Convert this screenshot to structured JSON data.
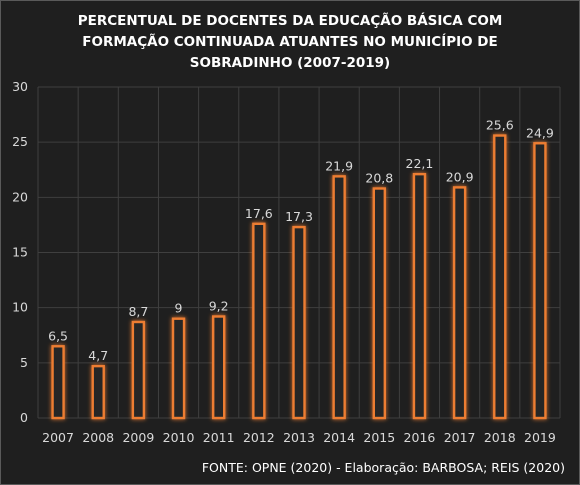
{
  "chart_data": {
    "type": "bar",
    "title_lines": [
      "PERCENTUAL DE DOCENTES DA EDUCAÇÃO BÁSICA COM",
      "FORMAÇÃO CONTINUADA ATUANTES NO MUNICÍPIO DE",
      "SOBRADINHO  (2007-2019)"
    ],
    "categories": [
      "2007",
      "2008",
      "2009",
      "2010",
      "2011",
      "2012",
      "2013",
      "2014",
      "2015",
      "2016",
      "2017",
      "2018",
      "2019"
    ],
    "values": [
      6.5,
      4.7,
      8.7,
      9,
      9.2,
      17.6,
      17.3,
      21.9,
      20.8,
      22.1,
      20.9,
      25.6,
      24.9
    ],
    "value_labels": [
      "6,5",
      "4,7",
      "8,7",
      "9",
      "9,2",
      "17,6",
      "17,3",
      "21,9",
      "20,8",
      "22,1",
      "20,9",
      "25,6",
      "24,9"
    ],
    "ylim": [
      0,
      30
    ],
    "yticks": [
      0,
      5,
      10,
      15,
      20,
      25,
      30
    ],
    "grid": true,
    "xlabel": "",
    "ylabel": "",
    "source": "FONTE: OPNE (2020) - Elaboração: BARBOSA; REIS (2020)",
    "colors": {
      "background": "#1f1f1f",
      "bar_fill": "#262626",
      "bar_outline": "#ed7d31",
      "bar_glow": "#ff9a40",
      "grid": "#3f3f3f",
      "text": "#d9d9d9",
      "title": "#ffffff"
    }
  }
}
